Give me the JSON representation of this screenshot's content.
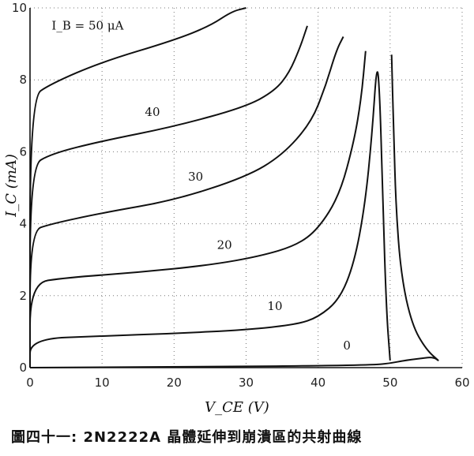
{
  "chart_data": {
    "type": "line",
    "title": "",
    "xlabel": "V_CE (V)",
    "ylabel": "I_C (mA)",
    "xlim": [
      0,
      60
    ],
    "ylim": [
      0,
      10
    ],
    "xticks": [
      0,
      10,
      20,
      30,
      40,
      50,
      60
    ],
    "yticks": [
      0,
      2,
      4,
      6,
      8,
      10
    ],
    "grid": true,
    "series": [
      {
        "name": "I_B = 50 μA",
        "label_pos": [
          8,
          9.4
        ],
        "points": [
          [
            0,
            0
          ],
          [
            0,
            7.5
          ],
          [
            3,
            7.9
          ],
          [
            10,
            8.5
          ],
          [
            20,
            9.1
          ],
          [
            25,
            9.5
          ],
          [
            28,
            9.9
          ],
          [
            30,
            10
          ]
        ]
      },
      {
        "name": "40",
        "label_pos": [
          17,
          7.0
        ],
        "points": [
          [
            0,
            0
          ],
          [
            0,
            5.6
          ],
          [
            3,
            5.95
          ],
          [
            10,
            6.3
          ],
          [
            20,
            6.7
          ],
          [
            30,
            7.25
          ],
          [
            34,
            7.7
          ],
          [
            36,
            8.2
          ],
          [
            37.5,
            8.9
          ],
          [
            38.5,
            9.5
          ]
        ]
      },
      {
        "name": "30",
        "label_pos": [
          23,
          5.2
        ],
        "points": [
          [
            0,
            0
          ],
          [
            0,
            3.8
          ],
          [
            3,
            4.0
          ],
          [
            10,
            4.3
          ],
          [
            20,
            4.65
          ],
          [
            30,
            5.3
          ],
          [
            35,
            5.9
          ],
          [
            39,
            6.8
          ],
          [
            41,
            7.8
          ],
          [
            42.5,
            8.8
          ],
          [
            43.5,
            9.2
          ]
        ]
      },
      {
        "name": "20",
        "label_pos": [
          27,
          3.3
        ],
        "points": [
          [
            0,
            0
          ],
          [
            0,
            2.35
          ],
          [
            5,
            2.5
          ],
          [
            15,
            2.65
          ],
          [
            25,
            2.85
          ],
          [
            32,
            3.1
          ],
          [
            37,
            3.4
          ],
          [
            40,
            3.85
          ],
          [
            43,
            4.8
          ],
          [
            45,
            6.3
          ],
          [
            46,
            7.5
          ],
          [
            46.6,
            8.8
          ]
        ]
      },
      {
        "name": "10",
        "label_pos": [
          34,
          1.6
        ],
        "points": [
          [
            0,
            0
          ],
          [
            0,
            0.8
          ],
          [
            10,
            0.88
          ],
          [
            20,
            0.95
          ],
          [
            30,
            1.05
          ],
          [
            37,
            1.2
          ],
          [
            40,
            1.4
          ],
          [
            43,
            1.9
          ],
          [
            45,
            2.9
          ],
          [
            46.5,
            4.5
          ],
          [
            47.5,
            6.5
          ],
          [
            48.2,
            8.6
          ],
          [
            48.6,
            7.4
          ],
          [
            49,
            4.5
          ],
          [
            49.5,
            1.5
          ],
          [
            50,
            0.2
          ]
        ]
      },
      {
        "name": "0",
        "label_pos": [
          44,
          0.5
        ],
        "points": [
          [
            0,
            0
          ],
          [
            20,
            0.02
          ],
          [
            40,
            0.05
          ],
          [
            48,
            0.08
          ],
          [
            50,
            0.12
          ],
          [
            52,
            0.2
          ],
          [
            54,
            0.25
          ],
          [
            56,
            0.3
          ],
          [
            57,
            0.15
          ],
          [
            55,
            0.5
          ],
          [
            53,
            1.2
          ],
          [
            51.5,
            2.6
          ],
          [
            50.8,
            4.5
          ],
          [
            50.5,
            6.5
          ],
          [
            50.2,
            8.7
          ]
        ]
      }
    ]
  },
  "caption": "圖四十一: 2N2222A 晶體延伸到崩潰區的共射曲線"
}
